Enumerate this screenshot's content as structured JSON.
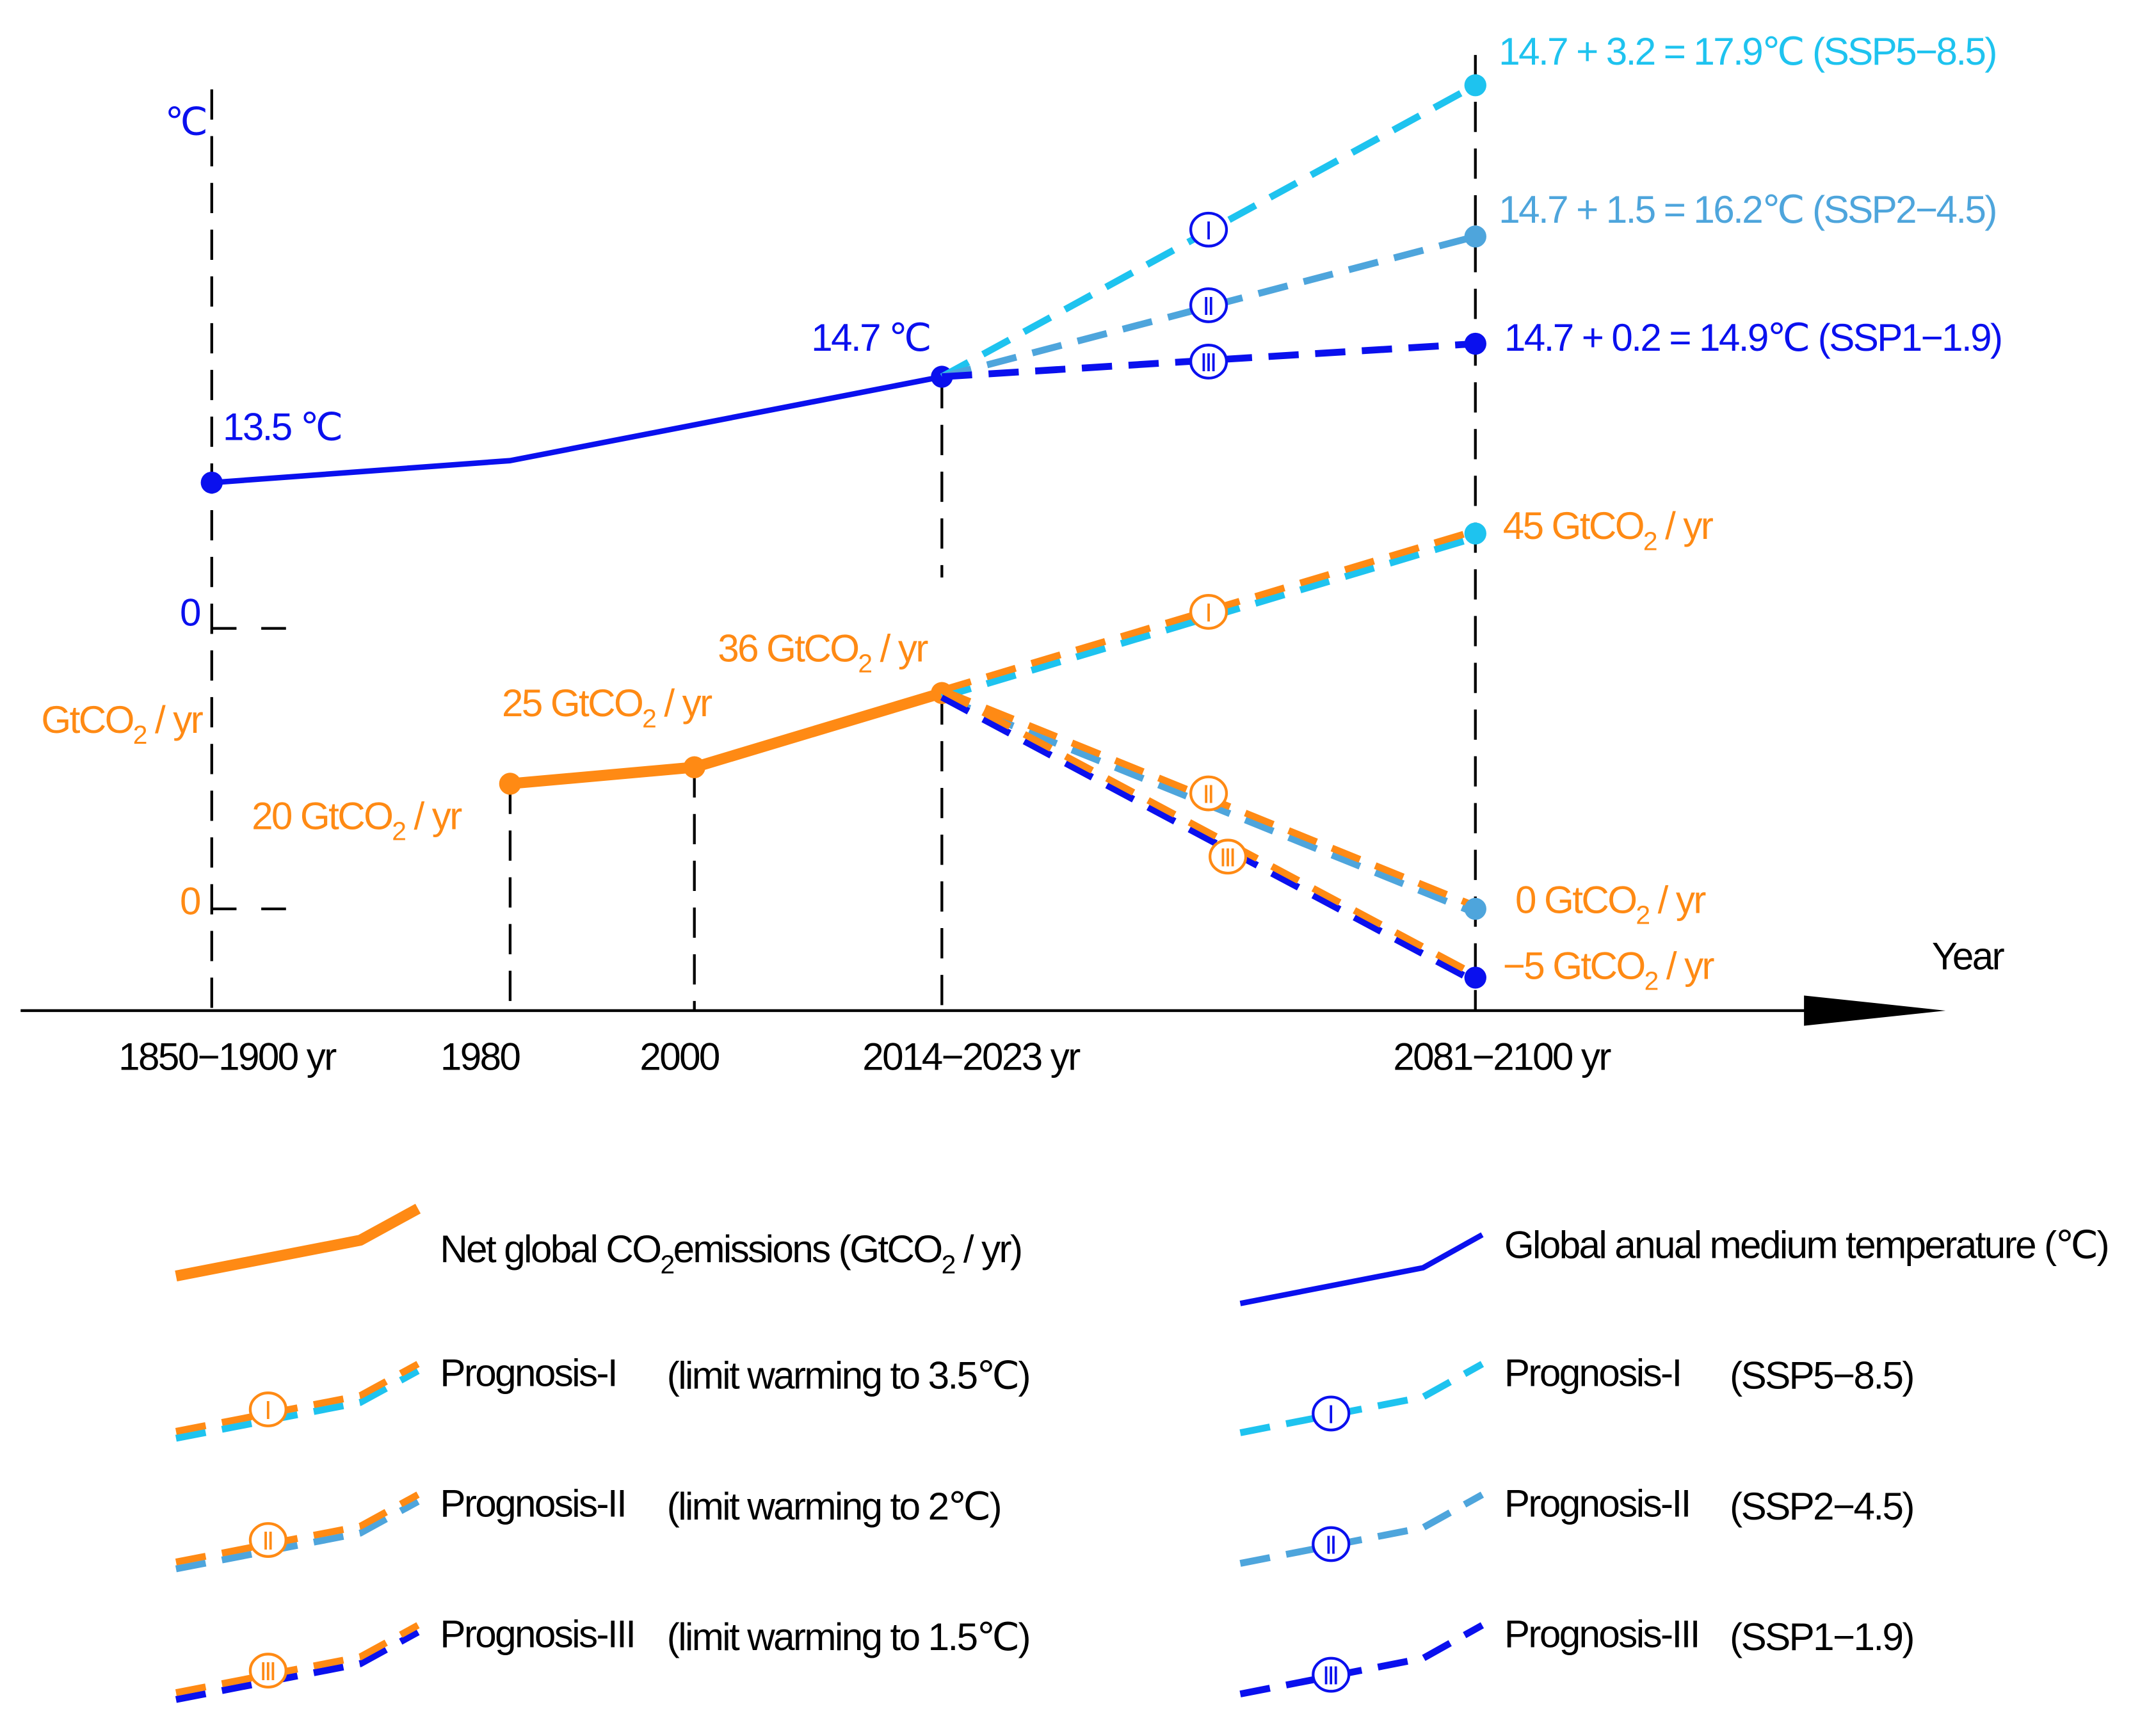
{
  "chart_data": {
    "type": "line",
    "title": "",
    "xlabel": "Year",
    "x_categories": [
      "1850−1900 yr",
      "1980",
      "2000",
      "2014−2023 yr",
      "2081−2100 yr"
    ],
    "temperature": {
      "unit": "℃",
      "zero_label": "0",
      "historical": [
        13.5,
        null,
        14.7
      ],
      "historical_x": [
        "1850−1900 yr",
        "1980",
        "2014−2023 yr"
      ],
      "point_labels": [
        "13.5 ℃",
        "14.7 ℃"
      ],
      "projections": [
        {
          "name": "Prognosis-I",
          "scenario": "SSP5−8.5",
          "value": 17.9,
          "numeral": "Ⅰ",
          "label": "14.7 + 3.2 = 17.9℃ (SSP5−8.5)",
          "color": "#1ec3ef"
        },
        {
          "name": "Prognosis-II",
          "scenario": "SSP2−4.5",
          "value": 16.2,
          "numeral": "Ⅱ",
          "label": "14.7 + 1.5 = 16.2℃ (SSP2−4.5)",
          "color": "#4ea5dc"
        },
        {
          "name": "Prognosis-III",
          "scenario": "SSP1−1.9",
          "value": 14.9,
          "numeral": "Ⅲ",
          "label": "14.7 + 0.2 = 14.9℃ (SSP1−1.9)",
          "color": "#0a10ee"
        }
      ]
    },
    "emissions": {
      "unit_main": "GtCO",
      "unit_sub": "2",
      "unit_tail": " / yr",
      "zero_label": "0",
      "historical": [
        20,
        25,
        36
      ],
      "historical_x": [
        "1980",
        "2000",
        "2014−2023 yr"
      ],
      "point_labels": [
        {
          "main": "20 GtCO",
          "sub": "2",
          "tail": " / yr"
        },
        {
          "main": "25 GtCO",
          "sub": "2",
          "tail": " / yr"
        },
        {
          "main": "36 GtCO",
          "sub": "2",
          "tail": " / yr"
        }
      ],
      "projections": [
        {
          "name": "Prognosis-I",
          "value": 45,
          "numeral": "Ⅰ",
          "label": {
            "main": "45 GtCO",
            "sub": "2",
            "tail": " / yr"
          }
        },
        {
          "name": "Prognosis-II",
          "value": 0,
          "numeral": "Ⅱ",
          "label": {
            "main": "0 GtCO",
            "sub": "2",
            "tail": " / yr"
          }
        },
        {
          "name": "Prognosis-III",
          "value": -5,
          "numeral": "Ⅲ",
          "label": {
            "main": "−5 GtCO",
            "sub": "2",
            "tail": " / yr"
          }
        }
      ]
    },
    "colors": {
      "emissions": "#ff8a14",
      "temperature": "#0a10ee",
      "axis": "#000000"
    }
  },
  "legend": {
    "emissions": {
      "main": "Net global CO",
      "sub": "2",
      "mid": "emissions (GtCO",
      "sub2": "2",
      "tail": " / yr)"
    },
    "temperature": "Global anual medium temperature  (℃)",
    "left": [
      {
        "name": "Prognosis-I",
        "desc": "(limit warming to 3.5℃)",
        "numeral": "Ⅰ"
      },
      {
        "name": "Prognosis-II",
        "desc": "(limit warming to 2℃)",
        "numeral": "Ⅱ"
      },
      {
        "name": "Prognosis-III",
        "desc": "(limit warming to 1.5℃)",
        "numeral": "Ⅲ"
      }
    ],
    "right": [
      {
        "name": "Prognosis-I",
        "desc": "(SSP5−8.5)",
        "numeral": "Ⅰ"
      },
      {
        "name": "Prognosis-II",
        "desc": "(SSP2−4.5)",
        "numeral": "Ⅱ"
      },
      {
        "name": "Prognosis-III",
        "desc": "(SSP1−1.9)",
        "numeral": "Ⅲ"
      }
    ]
  }
}
